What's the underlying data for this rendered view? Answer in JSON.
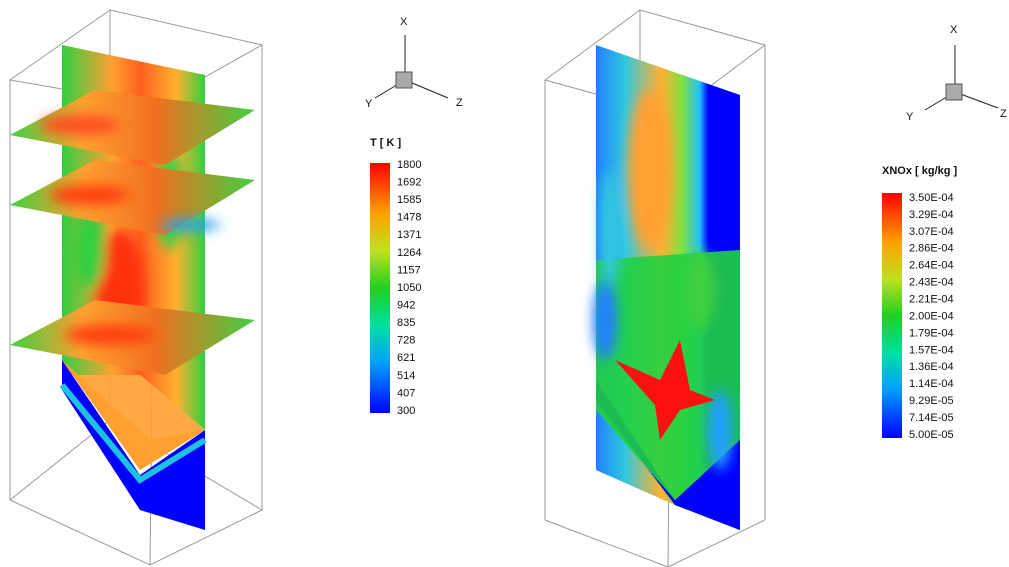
{
  "panels": [
    {
      "axes": {
        "x": "X",
        "y": "Y",
        "z": "Z"
      },
      "legend": {
        "title": "T [ K ]",
        "labels": [
          "1800",
          "1692",
          "1585",
          "1478",
          "1371",
          "1264",
          "1157",
          "1050",
          "942",
          "835",
          "728",
          "621",
          "514",
          "407",
          "300"
        ]
      }
    },
    {
      "axes": {
        "x": "X",
        "y": "Y",
        "z": "Z"
      },
      "legend": {
        "title": "XNOx [ kg/kg ]",
        "labels": [
          "3.50E-04",
          "3.29E-04",
          "3.07E-04",
          "2.86E-04",
          "2.64E-04",
          "2.43E-04",
          "2.21E-04",
          "2.00E-04",
          "1.79E-04",
          "1.57E-04",
          "1.36E-04",
          "1.14E-04",
          "9.29E-05",
          "7.14E-05",
          "5.00E-05"
        ]
      }
    }
  ]
}
